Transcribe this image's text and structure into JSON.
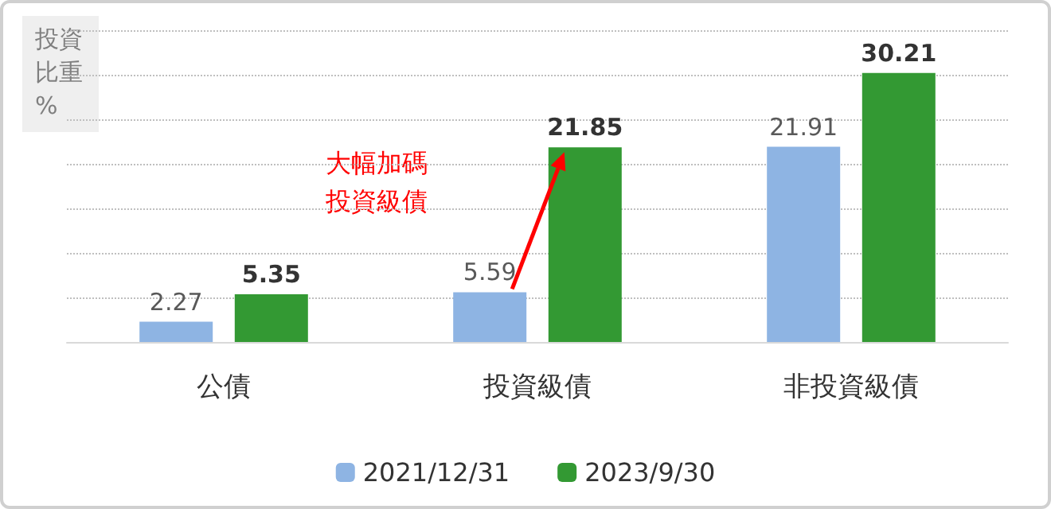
{
  "chart_data": {
    "type": "bar",
    "ylabel": "投資比重%",
    "categories": [
      "公債",
      "投資級債",
      "非投資級債"
    ],
    "series": [
      {
        "name": "2021/12/31",
        "color": "#8eb4e3",
        "values": [
          2.27,
          5.59,
          21.91
        ]
      },
      {
        "name": "2023/9/30",
        "color": "#339933",
        "values": [
          5.35,
          21.85,
          30.21
        ]
      }
    ],
    "ylim": [
      0,
      35
    ],
    "yticks": [
      {
        "value": 0,
        "label": null
      },
      {
        "value": 5,
        "label": null
      },
      {
        "value": 10,
        "label": null
      },
      {
        "value": 15,
        "label": null
      },
      {
        "value": 20,
        "label": null
      },
      {
        "value": 25,
        "label": null
      },
      {
        "value": 30,
        "label": null
      },
      {
        "value": 35,
        "label": null
      }
    ],
    "grid": "y",
    "legend": "bottom",
    "data_labels": true,
    "annotations": [
      "大幅加碼投資級債"
    ]
  }
}
